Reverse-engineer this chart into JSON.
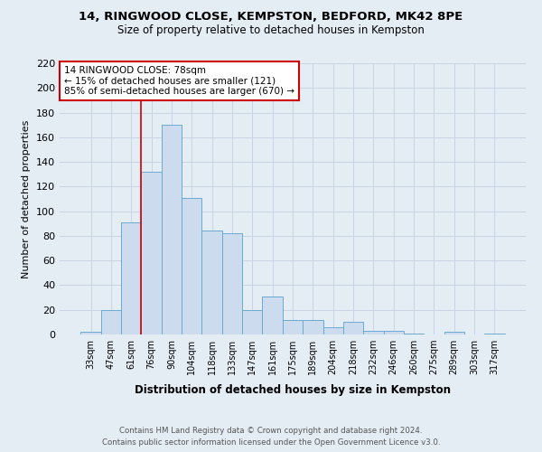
{
  "title_line1": "14, RINGWOOD CLOSE, KEMPSTON, BEDFORD, MK42 8PE",
  "title_line2": "Size of property relative to detached houses in Kempston",
  "xlabel": "Distribution of detached houses by size in Kempston",
  "ylabel": "Number of detached properties",
  "bar_labels": [
    "33sqm",
    "47sqm",
    "61sqm",
    "76sqm",
    "90sqm",
    "104sqm",
    "118sqm",
    "133sqm",
    "147sqm",
    "161sqm",
    "175sqm",
    "189sqm",
    "204sqm",
    "218sqm",
    "232sqm",
    "246sqm",
    "260sqm",
    "275sqm",
    "289sqm",
    "303sqm",
    "317sqm"
  ],
  "bar_values": [
    2,
    20,
    91,
    132,
    170,
    111,
    84,
    82,
    20,
    31,
    12,
    12,
    6,
    10,
    3,
    3,
    1,
    0,
    2,
    0,
    1
  ],
  "bar_color": "#ccdcee",
  "bar_edge_color": "#6aaad4",
  "ylim": [
    0,
    220
  ],
  "yticks": [
    0,
    20,
    40,
    60,
    80,
    100,
    120,
    140,
    160,
    180,
    200,
    220
  ],
  "property_label": "14 RINGWOOD CLOSE: 78sqm",
  "annotation_line1": "← 15% of detached houses are smaller (121)",
  "annotation_line2": "85% of semi-detached houses are larger (670) →",
  "vline_color": "#cc0000",
  "annotation_box_color": "#ffffff",
  "annotation_box_edge": "#cc0000",
  "grid_color": "#c8d4e4",
  "background_color": "#e4ecf4",
  "footer_line1": "Contains HM Land Registry data © Crown copyright and database right 2024.",
  "footer_line2": "Contains public sector information licensed under the Open Government Licence v3.0."
}
